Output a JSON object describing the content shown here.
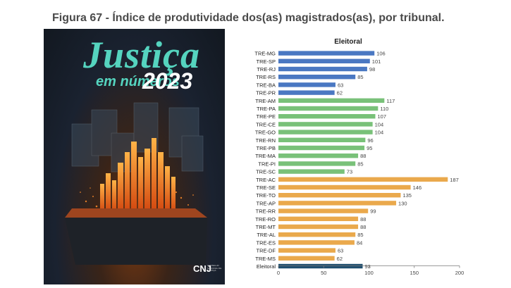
{
  "figure_title": "Figura 67 - Índice de produtividade dos(as) magistrados(as), por tribunal.",
  "cover": {
    "brand_line1": "Justiça",
    "brand_line2": "em números",
    "brand_year": "2023",
    "publisher_logo": "CNJ",
    "publisher_name": "CONSELHO NACIONAL DE JUSTIÇA"
  },
  "colors": {
    "blue": "#4a78c2",
    "green": "#79c179",
    "orange": "#eaa94c",
    "navy": "#1f4e6e",
    "axis": "#7a7a7a",
    "text": "#1e1e1e"
  },
  "chart_data": {
    "type": "bar",
    "orientation": "horizontal",
    "title": "Eleitoral",
    "categories": [
      "TRE-MG",
      "TRE-SP",
      "TRE-RJ",
      "TRE-RS",
      "TRE-BA",
      "TRE-PR",
      "TRE-AM",
      "TRE-PA",
      "TRE-PE",
      "TRE-CE",
      "TRE-GO",
      "TRE-RN",
      "TRE-PB",
      "TRE-MA",
      "TRE-PI",
      "TRE-SC",
      "TRE-AC",
      "TRE-SE",
      "TRE-TO",
      "TRE-AP",
      "TRE-RR",
      "TRE-RO",
      "TRE-MT",
      "TRE-AL",
      "TRE-ES",
      "TRE-DF",
      "TRE-MS",
      "Eleitoral"
    ],
    "values": [
      106,
      101,
      98,
      85,
      63,
      62,
      117,
      110,
      107,
      104,
      104,
      96,
      95,
      88,
      85,
      73,
      187,
      146,
      135,
      130,
      99,
      88,
      88,
      85,
      84,
      63,
      62,
      93
    ],
    "bar_color_keys": [
      "blue",
      "blue",
      "blue",
      "blue",
      "blue",
      "blue",
      "green",
      "green",
      "green",
      "green",
      "green",
      "green",
      "green",
      "green",
      "green",
      "green",
      "orange",
      "orange",
      "orange",
      "orange",
      "orange",
      "orange",
      "orange",
      "orange",
      "orange",
      "orange",
      "orange",
      "navy"
    ],
    "xlim": [
      0,
      200
    ],
    "x_ticks": [
      0,
      50,
      100,
      150,
      200
    ],
    "grid": false,
    "xlabel": "",
    "ylabel": ""
  }
}
